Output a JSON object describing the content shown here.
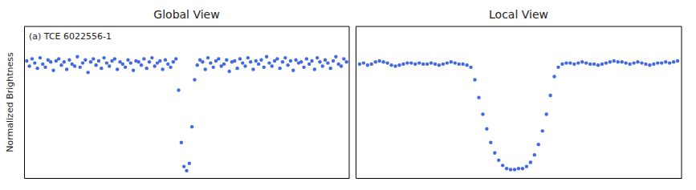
{
  "chart_data": [
    {
      "type": "scatter",
      "title": "Global View",
      "ylabel": "Normalized Brightness",
      "annotation": "(a) TCE 6022556-1",
      "color": "#4169e1",
      "marker": "circle",
      "tick_labels": false,
      "grid": false,
      "xlim": [
        -1,
        121
      ],
      "ylim": [
        -1.09,
        0.36
      ],
      "x": [
        0,
        1,
        2,
        3,
        4,
        5,
        6,
        7,
        8,
        9,
        10,
        11,
        12,
        13,
        14,
        15,
        16,
        17,
        18,
        19,
        20,
        21,
        22,
        23,
        24,
        25,
        26,
        27,
        28,
        29,
        30,
        31,
        32,
        33,
        34,
        35,
        36,
        37,
        38,
        39,
        40,
        41,
        42,
        43,
        44,
        45,
        46,
        47,
        48,
        49,
        50,
        51,
        52,
        53,
        54,
        55,
        56,
        57,
        58,
        59,
        60,
        61,
        62,
        63,
        64,
        65,
        66,
        67,
        68,
        69,
        70,
        71,
        72,
        73,
        74,
        75,
        76,
        77,
        78,
        79,
        80,
        81,
        82,
        83,
        84,
        85,
        86,
        87,
        88,
        89,
        90,
        91,
        92,
        93,
        94,
        95,
        96,
        97,
        98,
        99,
        100,
        101,
        102,
        103,
        104,
        105,
        106,
        107,
        108,
        109,
        110,
        111,
        112,
        113,
        114,
        115,
        116,
        117,
        118,
        119,
        120
      ],
      "values": [
        0.03,
        -0.02,
        0.05,
        0.01,
        -0.04,
        0.06,
        0.0,
        -0.03,
        0.04,
        0.02,
        -0.06,
        0.03,
        0.05,
        -0.01,
        0.02,
        -0.05,
        0.04,
        0.0,
        -0.02,
        0.07,
        -0.03,
        0.01,
        0.04,
        -0.08,
        0.02,
        0.05,
        -0.01,
        0.03,
        -0.04,
        0.06,
        0.01,
        -0.02,
        0.03,
        0.05,
        -0.05,
        0.02,
        0.0,
        -0.03,
        0.04,
        0.01,
        -0.06,
        0.03,
        0.02,
        -0.01,
        0.05,
        -0.04,
        0.02,
        0.06,
        -0.02,
        0.01,
        0.03,
        -0.05,
        0.04,
        0.0,
        -0.03,
        0.02,
        0.05,
        -0.25,
        -0.75,
        -0.98,
        -1.02,
        -0.95,
        -0.6,
        -0.15,
        -0.01,
        0.04,
        0.02,
        -0.05,
        0.06,
        0.01,
        -0.03,
        0.03,
        0.05,
        -0.02,
        0.0,
        0.04,
        -0.07,
        0.02,
        0.03,
        -0.04,
        0.05,
        0.01,
        -0.02,
        0.06,
        0.02,
        -0.05,
        0.03,
        0.0,
        0.04,
        -0.03,
        0.07,
        0.01,
        -0.02,
        0.03,
        0.05,
        -0.04,
        0.02,
        0.06,
        -0.01,
        0.03,
        -0.06,
        0.04,
        0.01,
        0.02,
        -0.03,
        0.05,
        0.0,
        0.03,
        -0.05,
        0.06,
        0.02,
        -0.02,
        0.04,
        0.01,
        -0.04,
        0.03,
        0.07,
        0.0,
        -0.02,
        0.05,
        0.02
      ]
    },
    {
      "type": "scatter",
      "title": "Local View",
      "color": "#4169e1",
      "marker": "circle",
      "tick_labels": false,
      "grid": false,
      "xlim": [
        -1,
        81
      ],
      "ylim": [
        -1.09,
        0.36
      ],
      "x": [
        0,
        1,
        2,
        3,
        4,
        5,
        6,
        7,
        8,
        9,
        10,
        11,
        12,
        13,
        14,
        15,
        16,
        17,
        18,
        19,
        20,
        21,
        22,
        23,
        24,
        25,
        26,
        27,
        28,
        29,
        30,
        31,
        32,
        33,
        34,
        35,
        36,
        37,
        38,
        39,
        40,
        41,
        42,
        43,
        44,
        45,
        46,
        47,
        48,
        49,
        50,
        51,
        52,
        53,
        54,
        55,
        56,
        57,
        58,
        59,
        60,
        61,
        62,
        63,
        64,
        65,
        66,
        67,
        68,
        69,
        70,
        71,
        72,
        73,
        74,
        75,
        76,
        77,
        78,
        79,
        80
      ],
      "values": [
        0.0,
        0.01,
        -0.01,
        0.0,
        0.02,
        0.03,
        0.02,
        0.01,
        -0.01,
        -0.02,
        -0.01,
        0.0,
        0.01,
        0.01,
        0.0,
        0.01,
        0.0,
        0.0,
        0.01,
        0.0,
        -0.01,
        0.0,
        0.01,
        0.02,
        0.01,
        0.0,
        0.0,
        -0.01,
        -0.03,
        -0.15,
        -0.32,
        -0.48,
        -0.62,
        -0.75,
        -0.85,
        -0.92,
        -0.97,
        -1.0,
        -1.01,
        -1.01,
        -1.0,
        -1.0,
        -0.98,
        -0.94,
        -0.87,
        -0.77,
        -0.64,
        -0.48,
        -0.3,
        -0.12,
        -0.03,
        0.0,
        0.01,
        0.01,
        0.0,
        0.01,
        0.02,
        0.01,
        0.0,
        0.0,
        -0.01,
        0.0,
        0.01,
        0.02,
        0.03,
        0.02,
        0.02,
        0.01,
        0.0,
        0.01,
        0.02,
        0.01,
        0.0,
        -0.01,
        0.0,
        0.01,
        0.01,
        0.02,
        0.01,
        0.02,
        0.03
      ]
    }
  ]
}
